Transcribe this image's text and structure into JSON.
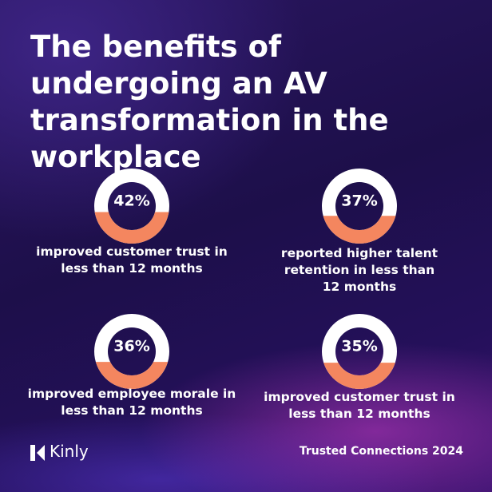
{
  "title": "The benefits of undergoing an AV transformation in the workplace",
  "stats": [
    {
      "value": 42,
      "label": "42%",
      "caption": "improved customer trust in less than 12 months"
    },
    {
      "value": 37,
      "label": "37%",
      "caption": "reported higher talent retention in less than 12 months"
    },
    {
      "value": 36,
      "label": "36%",
      "caption": "improved employee morale in less than 12 months"
    },
    {
      "value": 35,
      "label": "35%",
      "caption": "improved customer trust in less than 12 months"
    }
  ],
  "brand": "Kinly",
  "footer": "Trusted Connections 2024"
}
